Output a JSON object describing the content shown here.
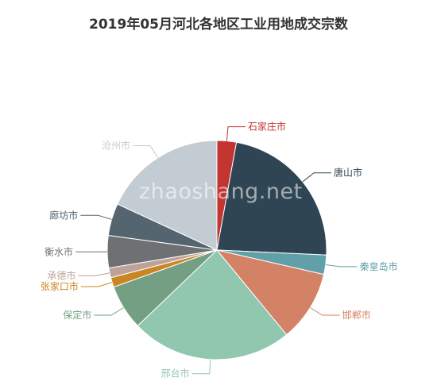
{
  "chart_data": {
    "type": "pie",
    "title": "2019年05月河北各地区工业用地成交宗数",
    "slices": [
      {
        "label": "石家庄市",
        "value": 3,
        "color": "#c23531"
      },
      {
        "label": "唐山市",
        "value": 24,
        "color": "#2f4554"
      },
      {
        "label": "秦皇岛市",
        "value": 3,
        "color": "#61a0a8"
      },
      {
        "label": "邯郸市",
        "value": 11,
        "color": "#d48265"
      },
      {
        "label": "邢台市",
        "value": 25,
        "color": "#91c7ae"
      },
      {
        "label": "保定市",
        "value": 7,
        "color": "#749f83"
      },
      {
        "label": "张家口市",
        "value": 1.5,
        "color": "#ca8622"
      },
      {
        "label": "承德市",
        "value": 1.5,
        "color": "#bda29a"
      },
      {
        "label": "衡水市",
        "value": 5,
        "color": "#6e7074"
      },
      {
        "label": "廊坊市",
        "value": 5,
        "color": "#546570"
      },
      {
        "label": "沧州市",
        "value": 19,
        "color": "#c4ccd3"
      }
    ]
  },
  "watermark": "zhaoshang.net"
}
